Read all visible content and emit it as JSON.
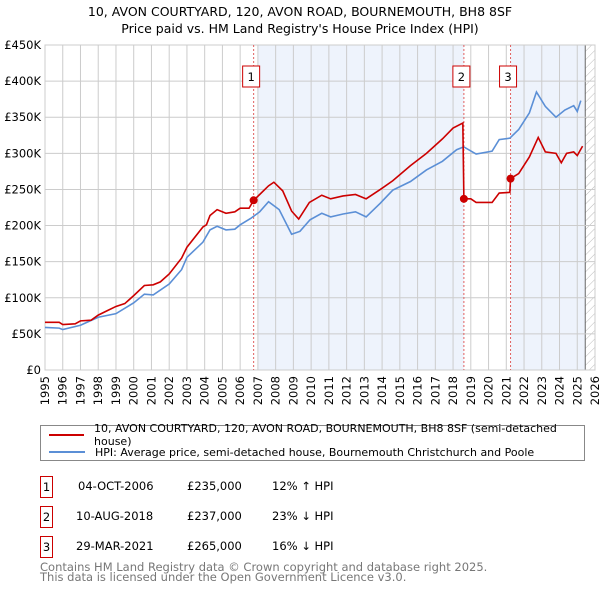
{
  "title": [
    "10, AVON COURTYARD, 120, AVON ROAD, BOURNEMOUTH, BH8 8SF",
    "Price paid vs. HM Land Registry's House Price Index (HPI)"
  ],
  "legend": [
    {
      "label": "10, AVON COURTYARD, 120, AVON ROAD, BOURNEMOUTH, BH8 8SF (semi-detached house)",
      "color": "#cc0000"
    },
    {
      "label": "HPI: Average price, semi-detached house, Bournemouth Christchurch and Poole",
      "color": "#5b8fd6"
    }
  ],
  "sales": [
    {
      "num": "1",
      "date": "04-OCT-2006",
      "price": "£235,000",
      "hpi": "12% ↑ HPI",
      "x": 2006.76,
      "y": 235
    },
    {
      "num": "2",
      "date": "10-AUG-2018",
      "price": "£237,000",
      "hpi": "23% ↓ HPI",
      "x": 2018.61,
      "y": 237
    },
    {
      "num": "3",
      "date": "29-MAR-2021",
      "price": "£265,000",
      "hpi": "16% ↓ HPI",
      "x": 2021.24,
      "y": 265
    }
  ],
  "footer": [
    "Contains HM Land Registry data © Crown copyright and database right 2025.",
    "This data is licensed under the Open Government Licence v3.0."
  ],
  "chart_data": {
    "type": "line",
    "xlim": [
      1995,
      2026
    ],
    "ylim": [
      0,
      450
    ],
    "xticks": [
      "1995",
      "1996",
      "1997",
      "1998",
      "1999",
      "2000",
      "2001",
      "2002",
      "2003",
      "2004",
      "2005",
      "2006",
      "2007",
      "2008",
      "2009",
      "2010",
      "2011",
      "2012",
      "2013",
      "2014",
      "2015",
      "2016",
      "2017",
      "2018",
      "2019",
      "2020",
      "2021",
      "2022",
      "2023",
      "2024",
      "2025",
      "2026"
    ],
    "yticks": [
      "£0",
      "£50K",
      "£100K",
      "£150K",
      "£200K",
      "£250K",
      "£300K",
      "£350K",
      "£400K",
      "£450K"
    ],
    "shaded": [
      [
        2007.0,
        2018.61
      ],
      [
        2021.24,
        2025.45
      ]
    ],
    "forecast_from": 2025.45,
    "series": [
      {
        "name": "property",
        "color": "#cc0000",
        "points": [
          [
            1995,
            66
          ],
          [
            1995.8,
            66
          ],
          [
            1996,
            63
          ],
          [
            1996.7,
            64
          ],
          [
            1997,
            68
          ],
          [
            1997.6,
            69
          ],
          [
            1998,
            76
          ],
          [
            1998.5,
            82
          ],
          [
            1999,
            88
          ],
          [
            1999.5,
            92
          ],
          [
            2000,
            103
          ],
          [
            2000.6,
            117
          ],
          [
            2001.1,
            118
          ],
          [
            2001.5,
            122
          ],
          [
            2002,
            133
          ],
          [
            2002.7,
            155
          ],
          [
            2003,
            170
          ],
          [
            2003.9,
            198
          ],
          [
            2004.1,
            201
          ],
          [
            2004.3,
            214
          ],
          [
            2004.7,
            222
          ],
          [
            2005.2,
            217
          ],
          [
            2005.7,
            219
          ],
          [
            2006,
            224
          ],
          [
            2006.5,
            224
          ],
          [
            2006.76,
            235
          ],
          [
            2007.1,
            243
          ],
          [
            2007.6,
            255
          ],
          [
            2007.9,
            260
          ],
          [
            2008.4,
            248
          ],
          [
            2008.9,
            220
          ],
          [
            2009.3,
            209
          ],
          [
            2009.9,
            232
          ],
          [
            2010.6,
            242
          ],
          [
            2011.1,
            237
          ],
          [
            2011.8,
            241
          ],
          [
            2012.5,
            243
          ],
          [
            2013.1,
            237
          ],
          [
            2013.9,
            250
          ],
          [
            2014.6,
            262
          ],
          [
            2015.6,
            283
          ],
          [
            2016.5,
            300
          ],
          [
            2017.4,
            320
          ],
          [
            2018.0,
            335
          ],
          [
            2018.55,
            342
          ],
          [
            2018.61,
            237
          ],
          [
            2019.0,
            237
          ],
          [
            2019.3,
            232
          ],
          [
            2020.2,
            232
          ],
          [
            2020.6,
            245
          ],
          [
            2021.2,
            246
          ],
          [
            2021.24,
            265
          ],
          [
            2021.7,
            272
          ],
          [
            2022.3,
            295
          ],
          [
            2022.8,
            322
          ],
          [
            2023.2,
            302
          ],
          [
            2023.8,
            300
          ],
          [
            2024.1,
            287
          ],
          [
            2024.4,
            300
          ],
          [
            2024.8,
            302
          ],
          [
            2025.0,
            297
          ],
          [
            2025.3,
            310
          ]
        ]
      },
      {
        "name": "HPI",
        "color": "#5b8fd6",
        "points": [
          [
            1995,
            59
          ],
          [
            1995.8,
            58
          ],
          [
            1996,
            56
          ],
          [
            1997,
            62
          ],
          [
            1998,
            73
          ],
          [
            1999,
            78
          ],
          [
            2000,
            93
          ],
          [
            2000.6,
            105
          ],
          [
            2001.1,
            104
          ],
          [
            2002,
            119
          ],
          [
            2002.7,
            139
          ],
          [
            2003,
            156
          ],
          [
            2003.9,
            177
          ],
          [
            2004.3,
            194
          ],
          [
            2004.7,
            199
          ],
          [
            2005.2,
            194
          ],
          [
            2005.7,
            195
          ],
          [
            2006,
            201
          ],
          [
            2006.6,
            210
          ],
          [
            2007.1,
            219
          ],
          [
            2007.6,
            233
          ],
          [
            2008.2,
            222
          ],
          [
            2008.9,
            188
          ],
          [
            2009.37,
            192
          ],
          [
            2009.94,
            208
          ],
          [
            2010.6,
            217
          ],
          [
            2011.1,
            212
          ],
          [
            2011.8,
            216
          ],
          [
            2012.5,
            219
          ],
          [
            2013.1,
            212
          ],
          [
            2013.9,
            231
          ],
          [
            2014.6,
            249
          ],
          [
            2015.6,
            261
          ],
          [
            2016.5,
            277
          ],
          [
            2017.4,
            289
          ],
          [
            2018.2,
            305
          ],
          [
            2018.6,
            309
          ],
          [
            2019.3,
            299
          ],
          [
            2020.2,
            303
          ],
          [
            2020.6,
            319
          ],
          [
            2021.2,
            321
          ],
          [
            2021.7,
            333
          ],
          [
            2022.3,
            356
          ],
          [
            2022.7,
            385
          ],
          [
            2023.2,
            365
          ],
          [
            2023.8,
            350
          ],
          [
            2024.3,
            360
          ],
          [
            2024.8,
            366
          ],
          [
            2025.0,
            358
          ],
          [
            2025.2,
            373
          ]
        ]
      }
    ]
  }
}
